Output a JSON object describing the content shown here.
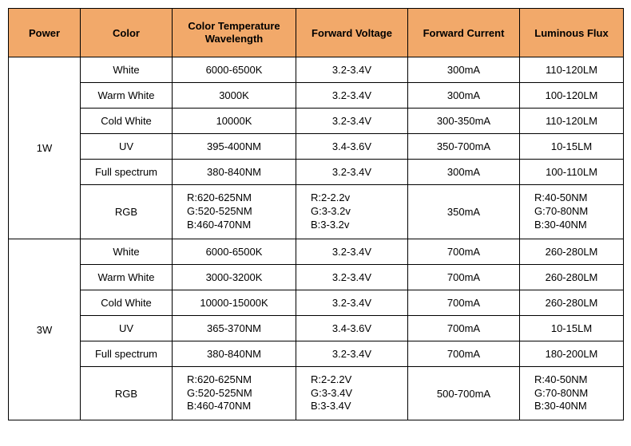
{
  "table": {
    "header_bg": "#f2a96a",
    "border_color": "#000000",
    "columns": [
      "Power",
      "Color",
      "Color Temperature\nWavelength",
      "Forward Voltage",
      "Forward Current",
      "Luminous Flux"
    ],
    "groups": [
      {
        "power": "1W",
        "rows": [
          {
            "color": "White",
            "ctw": "6000-6500K",
            "fv": "3.2-3.4V",
            "fc": "300mA",
            "lf": "110-120LM"
          },
          {
            "color": "Warm White",
            "ctw": "3000K",
            "fv": "3.2-3.4V",
            "fc": "300mA",
            "lf": "100-120LM"
          },
          {
            "color": "Cold White",
            "ctw": "10000K",
            "fv": "3.2-3.4V",
            "fc": "300-350mA",
            "lf": "110-120LM"
          },
          {
            "color": "UV",
            "ctw": "395-400NM",
            "fv": "3.4-3.6V",
            "fc": "350-700mA",
            "lf": "10-15LM"
          },
          {
            "color": "Full spectrum",
            "ctw": "380-840NM",
            "fv": "3.2-3.4V",
            "fc": "300mA",
            "lf": "100-110LM"
          },
          {
            "color": "RGB",
            "ctw_lines": [
              "R:620-625NM",
              "G:520-525NM",
              "B:460-470NM"
            ],
            "fv_lines": [
              "R:2-2.2v",
              "G:3-3.2v",
              "B:3-3.2v"
            ],
            "fc": "350mA",
            "lf_lines": [
              "R:40-50NM",
              "G:70-80NM",
              "B:30-40NM"
            ]
          }
        ]
      },
      {
        "power": "3W",
        "rows": [
          {
            "color": "White",
            "ctw": "6000-6500K",
            "fv": "3.2-3.4V",
            "fc": "700mA",
            "lf": "260-280LM"
          },
          {
            "color": "Warm White",
            "ctw": "3000-3200K",
            "fv": "3.2-3.4V",
            "fc": "700mA",
            "lf": "260-280LM"
          },
          {
            "color": "Cold White",
            "ctw": "10000-15000K",
            "fv": "3.2-3.4V",
            "fc": "700mA",
            "lf": "260-280LM"
          },
          {
            "color": "UV",
            "ctw": "365-370NM",
            "fv": "3.4-3.6V",
            "fc": "700mA",
            "lf": "10-15LM"
          },
          {
            "color": "Full spectrum",
            "ctw": "380-840NM",
            "fv": "3.2-3.4V",
            "fc": "700mA",
            "lf": "180-200LM"
          },
          {
            "color": "RGB",
            "ctw_lines": [
              "R:620-625NM",
              "G:520-525NM",
              "B:460-470NM"
            ],
            "fv_lines": [
              "R:2-2.2V",
              "G:3-3.4V",
              "B:3-3.4V"
            ],
            "fc": "500-700mA",
            "lf_lines": [
              "R:40-50NM",
              "G:70-80NM",
              "B:30-40NM"
            ]
          }
        ]
      }
    ]
  }
}
